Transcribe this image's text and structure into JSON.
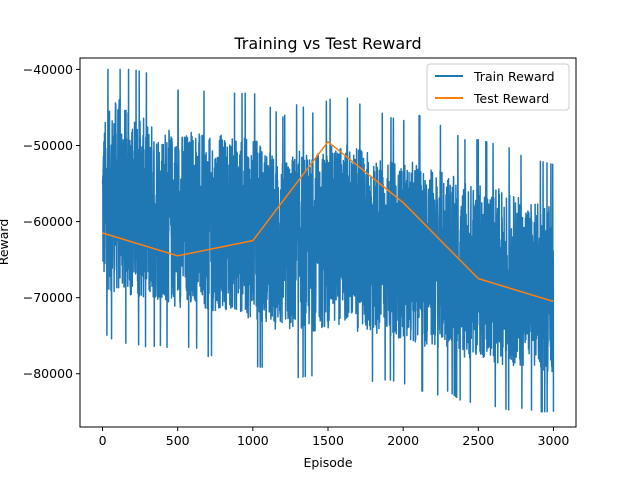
{
  "chart_data": {
    "type": "line",
    "title": "Training vs Test Reward",
    "xlabel": "Episode",
    "ylabel": "Reward",
    "xlim": [
      -150,
      3150
    ],
    "ylim": [
      -87000,
      -38500
    ],
    "xticks": [
      0,
      500,
      1000,
      1500,
      2000,
      2500,
      3000
    ],
    "xtick_labels": [
      "0",
      "500",
      "1000",
      "1500",
      "2000",
      "2500",
      "3000"
    ],
    "yticks": [
      -80000,
      -70000,
      -60000,
      -50000,
      -40000
    ],
    "ytick_labels": [
      "−80000",
      "−70000",
      "−60000",
      "−50000",
      "−40000"
    ],
    "grid": false,
    "legend_position": "top-right",
    "series": [
      {
        "name": "Train Reward",
        "color": "#1f77b4",
        "x": [
          0,
          100,
          200,
          300,
          400,
          500,
          600,
          700,
          800,
          900,
          1000,
          1100,
          1200,
          1300,
          1400,
          1500,
          1600,
          1700,
          1800,
          1900,
          2000,
          2100,
          2200,
          2300,
          2400,
          2500,
          2600,
          2700,
          2800,
          2900,
          3000
        ],
        "y": [
          -58000,
          -56500,
          -58000,
          -58500,
          -59000,
          -60000,
          -59000,
          -60500,
          -60000,
          -60500,
          -61000,
          -62000,
          -63500,
          -62500,
          -63000,
          -62000,
          -61500,
          -62500,
          -63000,
          -63500,
          -64000,
          -64000,
          -65000,
          -65000,
          -66500,
          -66500,
          -67000,
          -67500,
          -68000,
          -68500,
          -69000
        ],
        "spread": [
          11000,
          13000,
          12000,
          12000,
          11500,
          11500,
          11500,
          11500,
          11500,
          11500,
          12000,
          11500,
          11500,
          12000,
          11500,
          12000,
          12000,
          12000,
          12000,
          11500,
          11500,
          12000,
          12000,
          11500,
          11500,
          11500,
          11500,
          11500,
          11000,
          11000,
          11000
        ],
        "y_max_observed": -40000,
        "y_min_observed": -85000,
        "n_points": 3000
      },
      {
        "name": "Test Reward",
        "color": "#ff7f0e",
        "x": [
          0,
          500,
          1000,
          1500,
          2000,
          2500,
          3000
        ],
        "y": [
          -61500,
          -64500,
          -62500,
          -49500,
          -57500,
          -67500,
          -70500
        ]
      }
    ]
  }
}
